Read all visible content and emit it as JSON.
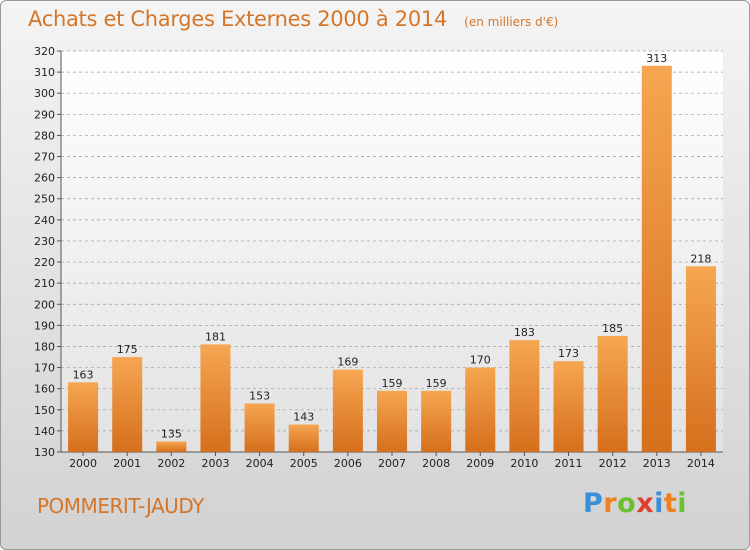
{
  "title": "Achats et Charges Externes 2000 à 2014",
  "unit": "(en milliers d'€)",
  "location": "POMMERIT-JAUDY",
  "logo": {
    "text": "Proxiti",
    "letters": [
      "P",
      "r",
      "o",
      "x",
      "i",
      "t",
      "i"
    ],
    "colors": [
      "#3a8fd8",
      "#f07f1e",
      "#6cbf2f",
      "#e23d2e",
      "#3a8fd8",
      "#f07f1e",
      "#6cbf2f"
    ]
  },
  "colors": {
    "bar_top": "#f6a652",
    "bar_bottom": "#d56f1c",
    "title": "#d4762a"
  },
  "chart_data": {
    "type": "bar",
    "categories": [
      "2000",
      "2001",
      "2002",
      "2003",
      "2004",
      "2005",
      "2006",
      "2007",
      "2008",
      "2009",
      "2010",
      "2011",
      "2012",
      "2013",
      "2014"
    ],
    "values": [
      163,
      175,
      135,
      181,
      153,
      143,
      169,
      159,
      159,
      170,
      183,
      173,
      185,
      313,
      218
    ],
    "ylim": [
      130,
      320
    ],
    "yticks": [
      130,
      140,
      150,
      160,
      170,
      180,
      190,
      200,
      210,
      220,
      230,
      240,
      250,
      260,
      270,
      280,
      290,
      300,
      310,
      320
    ],
    "grid": true
  }
}
